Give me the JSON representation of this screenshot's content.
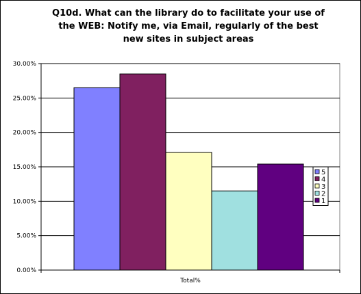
{
  "chart_data": {
    "type": "bar",
    "title": "Q10d.  What can the library do to facilitate your use of the WEB:  Notify me, via Email, regularly of the best new sites in subject areas",
    "title_lines": [
      "Q10d.  What can the library do to facilitate your use of",
      "the WEB:  Notify me, via Email, regularly of the best",
      "new sites in subject areas"
    ],
    "categories": [
      "Total%"
    ],
    "series": [
      {
        "name": "5",
        "values": [
          26.5
        ],
        "color": "#8080ff"
      },
      {
        "name": "4",
        "values": [
          28.5
        ],
        "color": "#802060"
      },
      {
        "name": "3",
        "values": [
          17.1
        ],
        "color": "#ffffc0"
      },
      {
        "name": "2",
        "values": [
          11.5
        ],
        "color": "#a0e0e0"
      },
      {
        "name": "1",
        "values": [
          15.4
        ],
        "color": "#600080"
      }
    ],
    "ylim": [
      0,
      30
    ],
    "yticks": [
      0,
      5,
      10,
      15,
      20,
      25,
      30
    ],
    "ytick_labels": [
      "0.00%",
      "5.00%",
      "10.00%",
      "15.00%",
      "20.00%",
      "25.00%",
      "30.00%"
    ],
    "xlabel": "",
    "ylabel": "",
    "grid": true,
    "legend_position": "right",
    "plot_background": "#ffffff",
    "gridline_color": "#000000"
  }
}
